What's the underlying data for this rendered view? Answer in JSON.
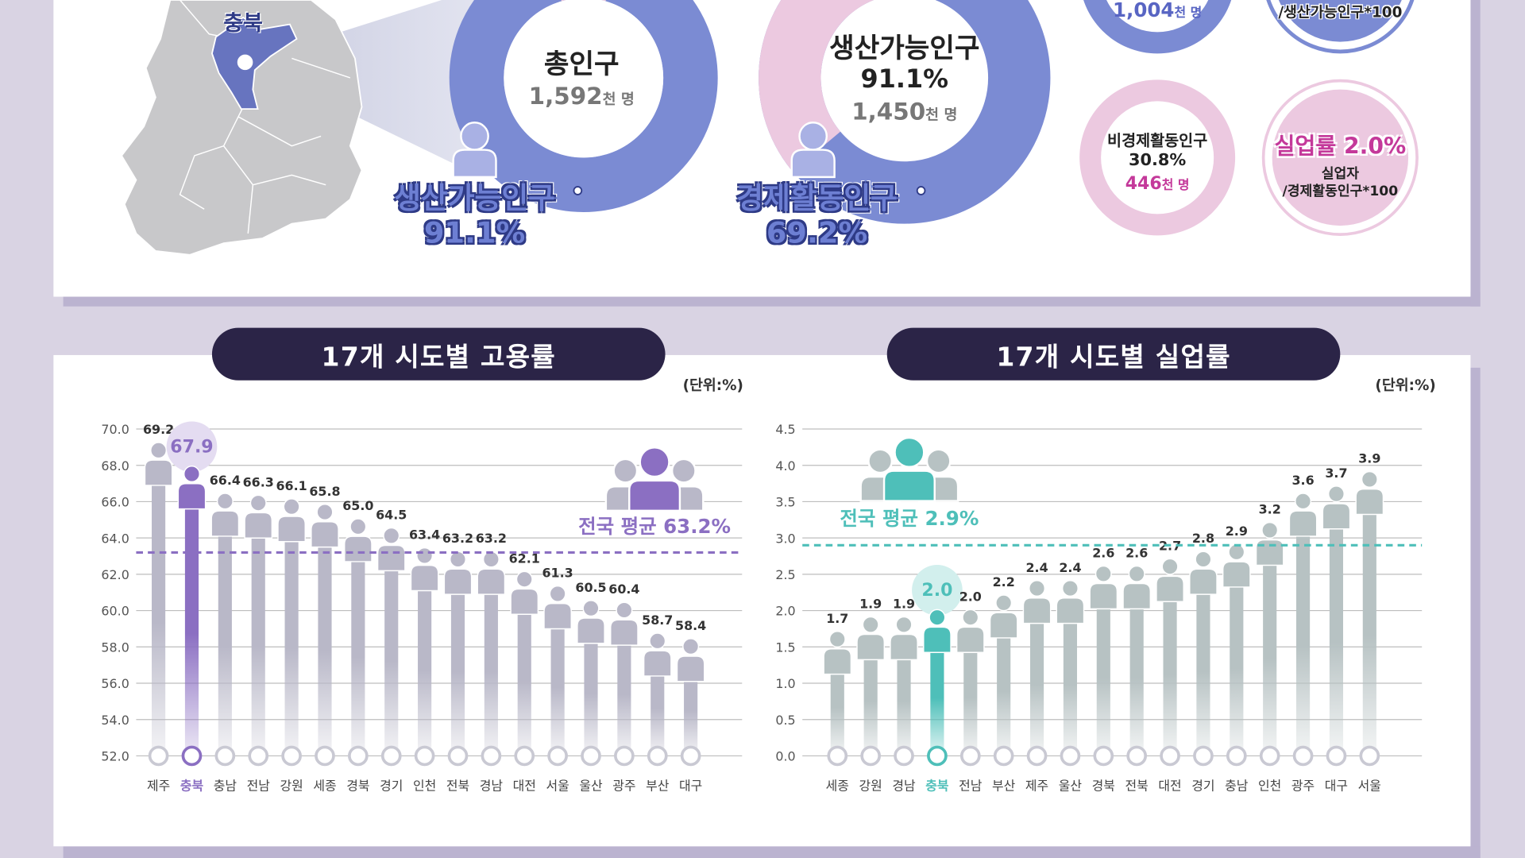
{
  "map": {
    "region_label": "충북"
  },
  "donut_total": {
    "title": "총인구",
    "value": "1,592",
    "unit": "천 명"
  },
  "donut_working_age": {
    "title": "생산가능인구",
    "percent": "91.1%",
    "value": "1,450",
    "unit": "천 명",
    "share": 91.1
  },
  "donut_active": {
    "share": 69.2
  },
  "label_working_age": {
    "title": "생산가능인구",
    "percent": "91.1%"
  },
  "label_active": {
    "title": "경제활동인구",
    "percent": "69.2%"
  },
  "circle_employed": {
    "value": "1,004",
    "unit": "천 명"
  },
  "circle_employment_formula": {
    "formula": "/생산가능인구*100"
  },
  "circle_inactive": {
    "title": "비경제활동인구",
    "percent": "30.8%",
    "value": "446",
    "unit": "천 명"
  },
  "circle_unemployment": {
    "title": "실업률 2.0%",
    "sub1": "실업자",
    "sub2": "/경제활동인구*100"
  },
  "colors": {
    "blue": "#7b8bd3",
    "pink": "#ecc9e0",
    "purple": "#8b6fc2",
    "teal": "#4ebfb9",
    "grey_figure": "#b9b8c8",
    "grey_figure_teal": "#b7c2c3",
    "navy": "#2b2447"
  },
  "chart_data": [
    {
      "type": "bar",
      "title": "17개 시도별 고용률",
      "unit_label": "(단위:%)",
      "categories": [
        "제주",
        "충북",
        "충남",
        "전남",
        "강원",
        "세종",
        "경북",
        "경기",
        "인천",
        "전북",
        "경남",
        "대전",
        "서울",
        "울산",
        "광주",
        "부산",
        "대구"
      ],
      "values": [
        69.2,
        67.9,
        66.4,
        66.3,
        66.1,
        65.8,
        65.0,
        64.5,
        63.4,
        63.2,
        63.2,
        62.1,
        61.3,
        60.5,
        60.4,
        58.7,
        58.4
      ],
      "value_labels": [
        "69.2",
        "67.9",
        "66.4",
        "66.3",
        "66.1",
        "65.8",
        "65.0",
        "64.5",
        "63.4",
        "63.2",
        "63.2",
        "62.1",
        "61.3",
        "60.5",
        "60.4",
        "58.7",
        "58.4"
      ],
      "highlight": "충북",
      "ylim": [
        52,
        70
      ],
      "yticks": [
        "70.0",
        "68.0",
        "66.0",
        "64.0",
        "62.0",
        "60.0",
        "58.0",
        "56.0",
        "54.0",
        "52.0"
      ],
      "average": 63.2,
      "average_label": "전국 평균 63.2%"
    },
    {
      "type": "bar",
      "title": "17개 시도별 실업률",
      "unit_label": "(단위:%)",
      "categories": [
        "세종",
        "강원",
        "경남",
        "충북",
        "전남",
        "부산",
        "제주",
        "울산",
        "경북",
        "전북",
        "대전",
        "경기",
        "충남",
        "인천",
        "광주",
        "대구",
        "서울"
      ],
      "values": [
        1.7,
        1.9,
        1.9,
        2.0,
        2.0,
        2.2,
        2.4,
        2.4,
        2.6,
        2.6,
        2.7,
        2.8,
        2.9,
        3.2,
        3.6,
        3.7,
        3.9
      ],
      "value_labels": [
        "1.7",
        "1.9",
        "1.9",
        "2.0",
        "2.0",
        "2.2",
        "2.4",
        "2.4",
        "2.6",
        "2.6",
        "2.7",
        "2.8",
        "2.9",
        "3.2",
        "3.6",
        "3.7",
        "3.9"
      ],
      "highlight": "충북",
      "ylim": [
        0,
        4.5
      ],
      "yticks": [
        "4.5",
        "4.0",
        "3.5",
        "3.0",
        "2.5",
        "2.0",
        "1.5",
        "1.0",
        "0.5",
        "0.0"
      ],
      "average": 2.9,
      "average_label": "전국 평균 2.9%"
    }
  ]
}
